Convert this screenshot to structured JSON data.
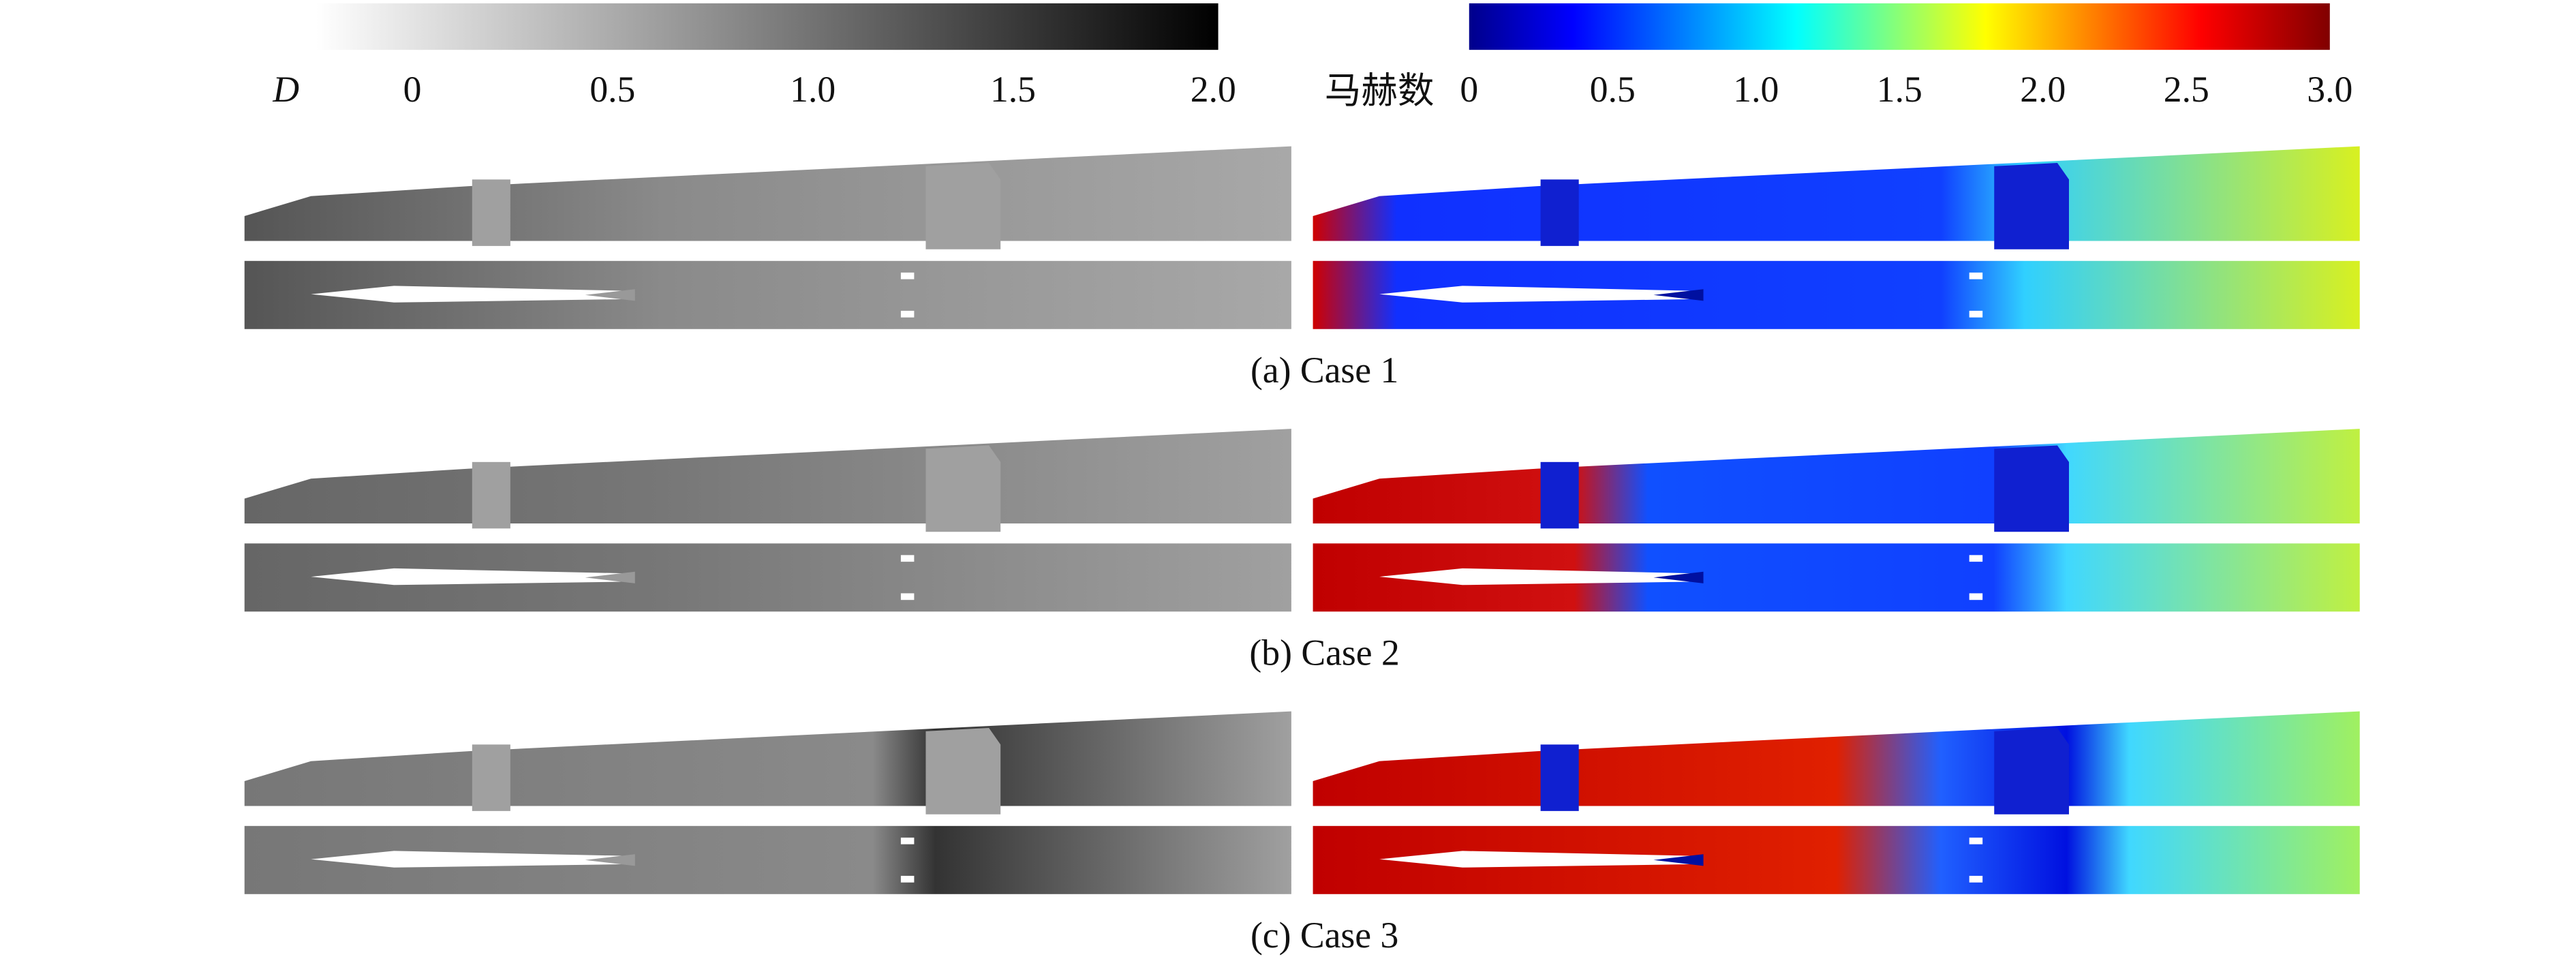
{
  "colorbars": [
    {
      "label": "D",
      "range": [
        0,
        2
      ],
      "ticks": [
        0,
        0.5,
        {
          "value": 1,
          "label": "1.0"
        },
        1.5,
        {
          "value": 2,
          "label": "2.0"
        }
      ]
    },
    {
      "label": "马赫数",
      "range": [
        0,
        3
      ],
      "ticks": [
        0,
        0.5,
        {
          "value": 1,
          "label": "1.0"
        },
        1.5,
        {
          "value": 2,
          "label": "2.0"
        },
        2.5,
        {
          "value": 3,
          "label": "3.0"
        }
      ]
    }
  ],
  "panels": [
    {
      "caption": "(a) Case 1"
    },
    {
      "caption": "(b) Case 2"
    },
    {
      "caption": "(c) Case 3"
    }
  ]
}
